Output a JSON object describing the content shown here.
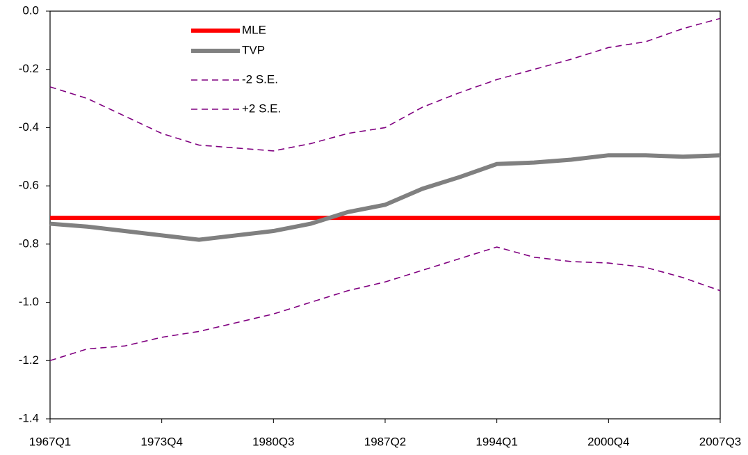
{
  "chart_data": {
    "type": "line",
    "categories": [
      "1967Q1",
      null,
      null,
      "1973Q4",
      null,
      null,
      "1980Q3",
      null,
      null,
      "1987Q2",
      null,
      null,
      "1994Q1",
      null,
      null,
      "2000Q4",
      null,
      null,
      "2007Q3"
    ],
    "series": [
      {
        "name": "MLE",
        "color": "#ff0000",
        "dashed": false,
        "values": [
          -0.71,
          -0.71,
          -0.71,
          -0.71,
          -0.71,
          -0.71,
          -0.71,
          -0.71,
          -0.71,
          -0.71,
          -0.71,
          -0.71,
          -0.71,
          -0.71,
          -0.71,
          -0.71,
          -0.71,
          -0.71,
          -0.71
        ]
      },
      {
        "name": "TVP",
        "color": "#808080",
        "dashed": false,
        "values": [
          -0.73,
          -0.74,
          -0.755,
          -0.77,
          -0.785,
          -0.77,
          -0.755,
          -0.73,
          -0.69,
          -0.665,
          -0.61,
          -0.57,
          -0.525,
          -0.52,
          -0.51,
          -0.495,
          -0.495,
          -0.5,
          -0.495
        ]
      },
      {
        "name": "-2 S.E.",
        "color": "#800080",
        "dashed": true,
        "values": [
          -1.2,
          -1.16,
          -1.15,
          -1.12,
          -1.1,
          -1.07,
          -1.04,
          -1.0,
          -0.96,
          -0.93,
          -0.89,
          -0.85,
          -0.81,
          -0.845,
          -0.86,
          -0.865,
          -0.88,
          -0.915,
          -0.96
        ]
      },
      {
        "name": "+2 S.E.",
        "color": "#800080",
        "dashed": true,
        "values": [
          -0.26,
          -0.3,
          -0.36,
          -0.42,
          -0.46,
          -0.47,
          -0.48,
          -0.455,
          -0.42,
          -0.4,
          -0.33,
          -0.28,
          -0.235,
          -0.2,
          -0.165,
          -0.125,
          -0.105,
          -0.06,
          -0.025
        ]
      }
    ],
    "ylim": [
      -1.4,
      0
    ],
    "yticks": [
      {
        "value": 0,
        "label": "0.0"
      },
      -0.2,
      -0.4,
      -0.6,
      -0.8,
      {
        "value": -1,
        "label": "-1.0"
      },
      -1.2,
      -1.4
    ],
    "grid": false,
    "legend": "top-left"
  }
}
